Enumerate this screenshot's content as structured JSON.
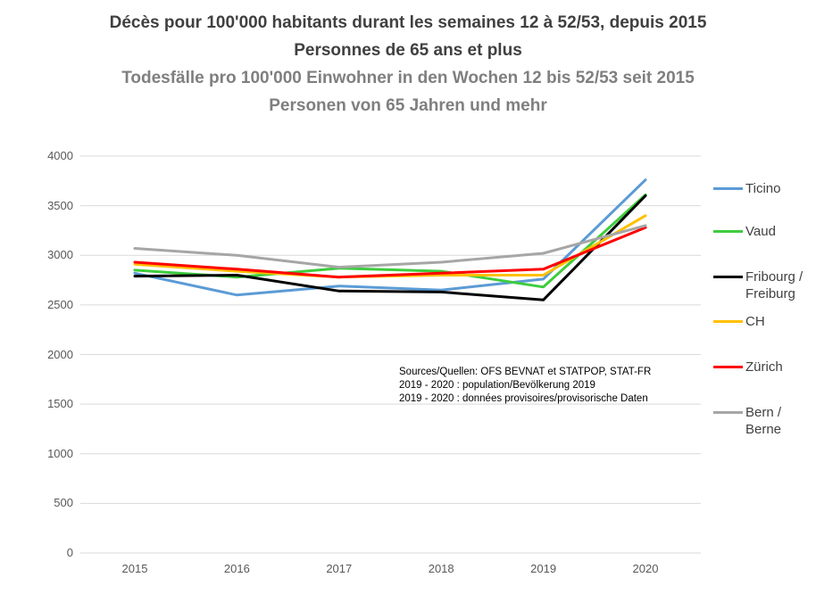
{
  "page": {
    "background": "#FFFFFF"
  },
  "title": {
    "fr_line1": "Décès pour 100'000 habitants durant les semaines 12 à 52/53, depuis 2015",
    "fr_line2": "Personnes de 65 ans et plus",
    "de_line1": "Todesfälle pro 100'000 Einwohner in den Wochen 12 bis 52/53 seit 2015",
    "de_line2": "Personen von 65 Jahren und mehr",
    "fr_color": "#404040",
    "de_color": "#7F7F7F"
  },
  "annotation": {
    "line1": "Sources/Quellen: OFS BEVNAT et STATPOP, STAT-FR",
    "line2": "2019 - 2020 : population/Bevölkerung 2019",
    "line3": "2019 - 2020 : données provisoires/provisorische Daten"
  },
  "chart_data": {
    "type": "line",
    "x": [
      2015,
      2016,
      2017,
      2018,
      2019,
      2020
    ],
    "series": [
      {
        "name": "Ticino",
        "color": "#5B9BD5",
        "values": [
          2820,
          2600,
          2690,
          2650,
          2760,
          3760
        ]
      },
      {
        "name": "Vaud",
        "color": "#3ECC3E",
        "values": [
          2850,
          2780,
          2870,
          2840,
          2680,
          3610
        ]
      },
      {
        "name": "Fribourg / Freiburg",
        "color": "#000000",
        "values": [
          2790,
          2800,
          2640,
          2630,
          2550,
          3600
        ]
      },
      {
        "name": "CH",
        "color": "#FFC000",
        "values": [
          2910,
          2840,
          2780,
          2800,
          2800,
          3400
        ]
      },
      {
        "name": "Zürich",
        "color": "#FF0000",
        "values": [
          2930,
          2860,
          2780,
          2820,
          2860,
          3280
        ]
      },
      {
        "name": "Bern / Berne",
        "color": "#A6A6A6",
        "values": [
          3070,
          3000,
          2880,
          2930,
          3020,
          3300
        ]
      }
    ],
    "ylim": [
      0,
      4000
    ],
    "yticks": [
      0,
      500,
      1000,
      1500,
      2000,
      2500,
      3000,
      3500,
      4000
    ],
    "grid": true,
    "gridline_color": "#D9D9D9",
    "axis_label_color": "#595959",
    "legend_position": "right"
  }
}
